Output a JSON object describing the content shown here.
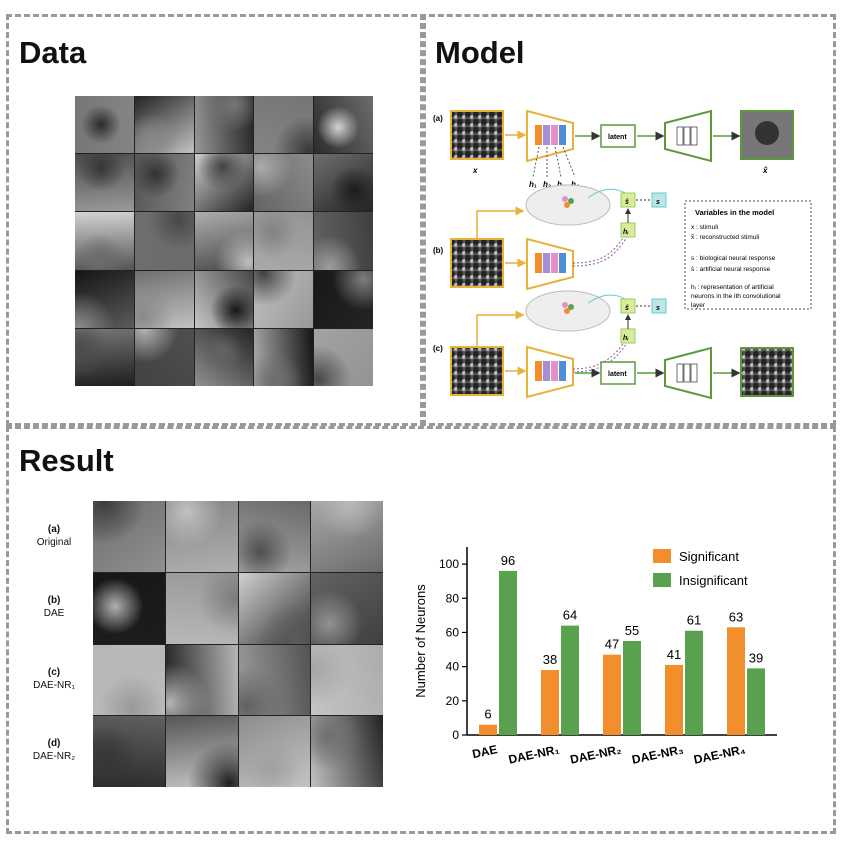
{
  "panels": {
    "data_title": "Data",
    "model_title": "Model",
    "result_title": "Result"
  },
  "model": {
    "row_a": "(a)",
    "row_b": "(b)",
    "row_c": "(c)",
    "latent": "latent",
    "x_label": "x",
    "xhat_label": "x̂",
    "h_labels": [
      "h₁",
      "h₂",
      "h₃",
      "h₄"
    ],
    "hi_label": "hᵢ",
    "shat_label": "ŝ",
    "s_label": "s",
    "legend_title": "Variables in the model",
    "legend_items": [
      "x : stimuli",
      "x̂ : reconstructed stimuli",
      "s : biological neural response",
      "ŝ : artificial neural response",
      "hᵢ : representation of artificial",
      "neurons in the ith convolutional",
      "layer"
    ]
  },
  "result": {
    "rows": [
      {
        "tag": "(a)",
        "name": "Original"
      },
      {
        "tag": "(b)",
        "name": "DAE"
      },
      {
        "tag": "(c)",
        "name": "DAE-NR₁"
      },
      {
        "tag": "(d)",
        "name": "DAE-NR₂"
      }
    ]
  },
  "chart_data": {
    "type": "bar",
    "categories": [
      "DAE",
      "DAE-NR₁",
      "DAE-NR₂",
      "DAE-NR₃",
      "DAE-NR₄"
    ],
    "series": [
      {
        "name": "Significant",
        "values": [
          6,
          38,
          47,
          41,
          63
        ],
        "color": "#f28e2b"
      },
      {
        "name": "Insignificant",
        "values": [
          96,
          64,
          55,
          61,
          39
        ],
        "color": "#59a14f"
      }
    ],
    "ylabel": "Number of Neurons",
    "xlabel": "",
    "ylim": [
      0,
      110
    ],
    "yticks": [
      0,
      20,
      40,
      60,
      80,
      100
    ],
    "legend": "top-right",
    "grid": false
  }
}
